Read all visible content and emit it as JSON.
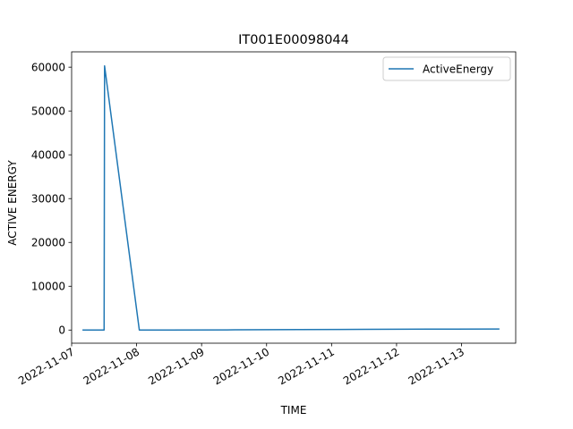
{
  "chart_data": {
    "type": "line",
    "title": "IT001E00098044",
    "xlabel": "TIME",
    "ylabel": "ACTIVE ENERGY",
    "x_axis_type": "date",
    "xlim": [
      "2022-11-07 00:00",
      "2022-11-13 20:00"
    ],
    "ylim": [
      -3000,
      63500
    ],
    "x_ticks": [
      "2022-11-07",
      "2022-11-08",
      "2022-11-09",
      "2022-11-10",
      "2022-11-11",
      "2022-11-12",
      "2022-11-13"
    ],
    "y_ticks": [
      0,
      10000,
      20000,
      30000,
      40000,
      50000,
      60000
    ],
    "grid": false,
    "legend_position": "top-right",
    "series": [
      {
        "name": "ActiveEnergy",
        "color": "#1f77b4",
        "x": [
          "2022-11-07 04:00",
          "2022-11-07 12:00",
          "2022-11-07 12:10",
          "2022-11-08 01:00",
          "2022-11-08 12:00",
          "2022-11-09 12:00",
          "2022-11-10 12:00",
          "2022-11-11 12:00",
          "2022-11-12 12:00",
          "2022-11-13 14:00"
        ],
        "y": [
          0,
          0,
          60300,
          0,
          0,
          50,
          100,
          150,
          200,
          250
        ]
      }
    ]
  }
}
